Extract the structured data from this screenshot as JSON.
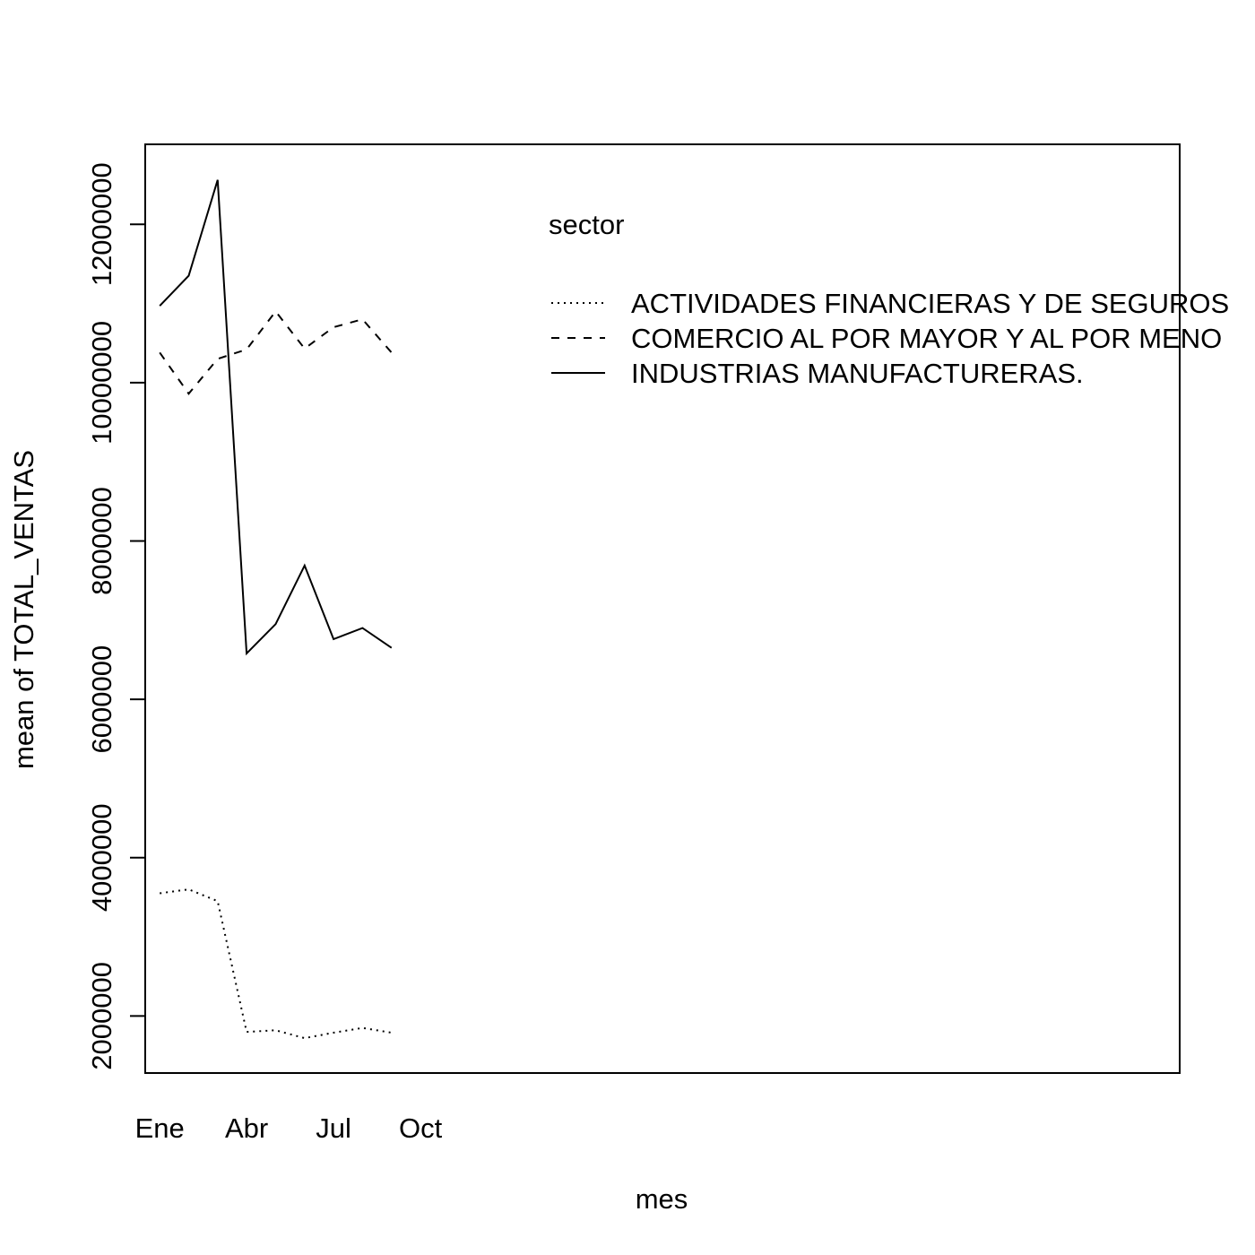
{
  "chart_data": {
    "type": "line",
    "title": "",
    "xlabel": "mes",
    "ylabel": "mean of  TOTAL_VENTAS",
    "x": [
      1,
      2,
      3,
      4,
      5,
      6,
      7,
      8,
      9
    ],
    "x_ticks": [
      {
        "value": 1,
        "label": "Ene"
      },
      {
        "value": 4,
        "label": "Abr"
      },
      {
        "value": 7,
        "label": "Jul"
      },
      {
        "value": 10,
        "label": "Oct"
      }
    ],
    "y_ticks": [
      2000000,
      4000000,
      6000000,
      8000000,
      10000000,
      12000000
    ],
    "xlim": [
      0.5,
      36.2
    ],
    "ylim": [
      1280000,
      13010000
    ],
    "grid": false,
    "legend": {
      "title": "sector",
      "placement": "top-right",
      "clipped_at_right_edge": true
    },
    "series": [
      {
        "name": "ACTIVIDADES FINANCIERAS Y DE SEGUROS",
        "legend_label_visible": "ACTIVIDADES FINANCIERAS Y DE SEGUROS",
        "linestyle": "dotted",
        "values": [
          3550000,
          3600000,
          3450000,
          1800000,
          1820000,
          1720000,
          1790000,
          1850000,
          1790000
        ]
      },
      {
        "name": "COMERCIO AL POR MAYOR Y AL POR MENOR",
        "legend_label_visible": "COMERCIO AL POR MAYOR Y AL POR MENO",
        "linestyle": "dashed",
        "values": [
          10380000,
          9860000,
          10300000,
          10420000,
          10900000,
          10430000,
          10700000,
          10800000,
          10380000
        ]
      },
      {
        "name": "INDUSTRIAS MANUFACTURERAS.",
        "legend_label_visible": "INDUSTRIAS MANUFACTURERAS.",
        "linestyle": "solid",
        "values": [
          10970000,
          11350000,
          12560000,
          6580000,
          6950000,
          7690000,
          6760000,
          6900000,
          6650000
        ]
      }
    ]
  }
}
